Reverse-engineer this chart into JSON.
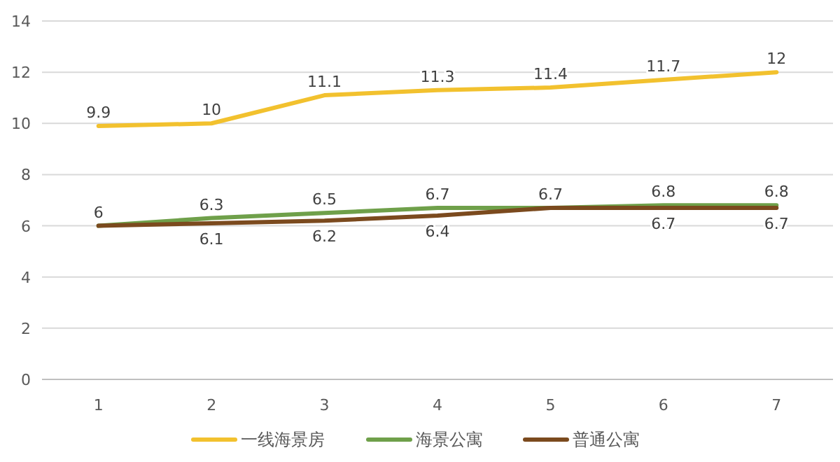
{
  "chart_data": {
    "type": "line",
    "categories": [
      "1",
      "2",
      "3",
      "4",
      "5",
      "6",
      "7"
    ],
    "series": [
      {
        "name": "一线海景房",
        "color": "#f2c12e",
        "values": [
          9.9,
          10,
          11.1,
          11.3,
          11.4,
          11.7,
          12
        ],
        "value_labels": [
          "9.9",
          "10",
          "11.1",
          "11.3",
          "11.4",
          "11.7",
          "12"
        ]
      },
      {
        "name": "海景公寓",
        "color": "#6fa04a",
        "values": [
          6,
          6.3,
          6.5,
          6.7,
          6.7,
          6.8,
          6.8
        ],
        "value_labels": [
          "6",
          "6.3",
          "6.5",
          "6.7",
          "6.7",
          "6.8",
          "6.8"
        ]
      },
      {
        "name": "普通公寓",
        "color": "#7b4a1e",
        "values": [
          6,
          6.1,
          6.2,
          6.4,
          6.7,
          6.7,
          6.7
        ],
        "value_labels": [
          null,
          "6.1",
          "6.2",
          "6.4",
          null,
          "6.7",
          "6.7"
        ]
      }
    ],
    "ylim": [
      0,
      14
    ],
    "yticks": [
      0,
      2,
      4,
      6,
      8,
      10,
      12,
      14
    ],
    "grid": "y",
    "legend": "bottom",
    "marker": "none",
    "line_style": "solid"
  }
}
